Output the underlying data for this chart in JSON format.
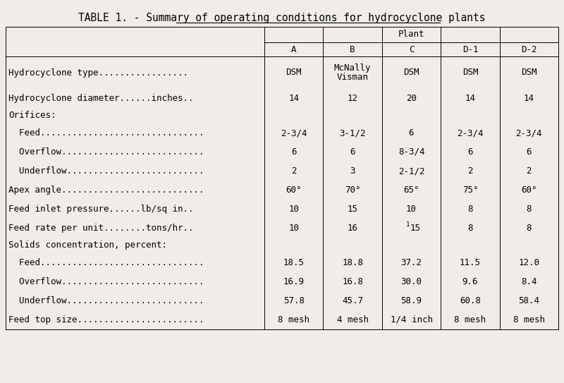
{
  "title_plain": "TABLE 1. - ",
  "title_underlined": "Summary of operating conditions for hydrocyclone plants",
  "columns": [
    "A",
    "B",
    "C",
    "D-1",
    "D-2"
  ],
  "group_header": "Plant",
  "bg_color": "#f0ede8",
  "font_size": 9.0,
  "rows": [
    {
      "label": "Hydrocyclone type.................",
      "header": false,
      "tall": true,
      "values": [
        "DSM",
        "McNally\nVisman",
        "DSM",
        "DSM",
        "DSM"
      ]
    },
    {
      "label": "Hydrocyclone diameter......inches..",
      "header": false,
      "tall": false,
      "values": [
        "14",
        "12",
        "20",
        "14",
        "14"
      ]
    },
    {
      "label": "Orifices:",
      "header": true,
      "tall": false,
      "values": [
        "",
        "",
        "",
        "",
        ""
      ]
    },
    {
      "label": "  Feed...............................",
      "header": false,
      "tall": false,
      "values": [
        "2-3/4",
        "3-1/2",
        "6",
        "2-3/4",
        "2-3/4"
      ]
    },
    {
      "label": "  Overflow...........................",
      "header": false,
      "tall": false,
      "values": [
        "6",
        "6",
        "8-3/4",
        "6",
        "6"
      ]
    },
    {
      "label": "  Underflow..........................",
      "header": false,
      "tall": false,
      "values": [
        "2",
        "3",
        "2-1/2",
        "2",
        "2"
      ]
    },
    {
      "label": "Apex angle...........................",
      "header": false,
      "tall": false,
      "values": [
        "60°",
        "70°",
        "65°",
        "75°",
        "60°"
      ]
    },
    {
      "label": "Feed inlet pressure......lb/sq in..",
      "header": false,
      "tall": false,
      "values": [
        "10",
        "15",
        "10",
        "8",
        "8"
      ]
    },
    {
      "label": "Feed rate per unit........tons/hr..",
      "header": false,
      "tall": false,
      "values": [
        "10",
        "16",
        "^1_15",
        "8",
        "8"
      ]
    },
    {
      "label": "Solids concentration, percent:",
      "header": true,
      "tall": false,
      "values": [
        "",
        "",
        "",
        "",
        ""
      ]
    },
    {
      "label": "  Feed...............................",
      "header": false,
      "tall": false,
      "values": [
        "18.5",
        "18.8",
        "37.2",
        "11.5",
        "12.0"
      ]
    },
    {
      "label": "  Overflow...........................",
      "header": false,
      "tall": false,
      "values": [
        "16.9",
        "16.8",
        "30.0",
        "9.6",
        "8.4"
      ]
    },
    {
      "label": "  Underflow..........................",
      "header": false,
      "tall": false,
      "values": [
        "57.8",
        "45.7",
        "58.9",
        "60.8",
        "58.4"
      ]
    },
    {
      "label": "Feed top size........................",
      "header": false,
      "tall": false,
      "values": [
        "8 mesh",
        "4 mesh",
        "1/4 inch",
        "8 mesh",
        "8 mesh"
      ]
    }
  ]
}
